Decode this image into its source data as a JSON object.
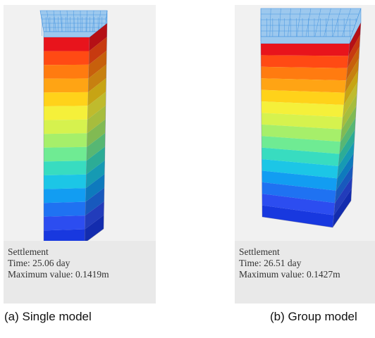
{
  "colors": {
    "legend_levels": [
      "#e8141c",
      "#ff4a14",
      "#ff7b10",
      "#ffa414",
      "#ffd21a",
      "#f5f03a",
      "#d6f24e",
      "#a6ef6a",
      "#6feb93",
      "#38dcc0",
      "#1cc6e6",
      "#129df2",
      "#1f72f2",
      "#2c4df0",
      "#1838df"
    ],
    "cap_fill": "#9cc8ee",
    "mesh": "#3a8ede",
    "panel_background": "#f1f1f1",
    "info_background": "#e9e9e9"
  },
  "panels": [
    {
      "id": "a",
      "info": {
        "title": "Settlement",
        "time": "Time: 25.06 day",
        "maximum": "Maximum value: 0.1419m"
      },
      "caption": "(a) Single model"
    },
    {
      "id": "b",
      "info": {
        "title": "Settlement",
        "time": "Time: 26.51 day",
        "maximum": "Maximum value: 0.1427m"
      },
      "caption": "(b) Group model"
    }
  ]
}
